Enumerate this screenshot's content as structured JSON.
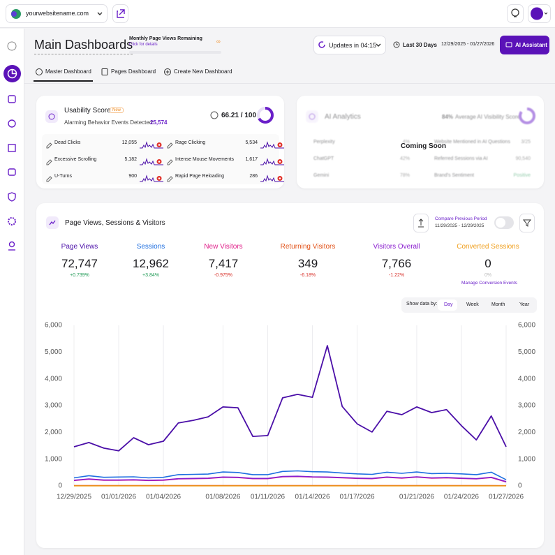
{
  "header": {
    "site": "yourwebsitename.com"
  },
  "page": {
    "title": "Main Dashboards",
    "quota_label": "Monthly Page Views Remaining",
    "quota_link": "Click for details",
    "quota_value": "∞",
    "updates": "Updates in 04:15",
    "range_label": "Last 30 Days",
    "range_dates": "12/29/2025 - 01/27/2026",
    "assistant": "AI Assistant"
  },
  "tabs": [
    "Master Dashboard",
    "Pages Dashboard",
    "Create New Dashboard"
  ],
  "usability": {
    "title": "Usability Score",
    "badge": "New",
    "alarm_label": "Alarming Behavior Events Detected:",
    "alarm_value": "25,574",
    "score": "66.21 / 100",
    "rows": [
      {
        "label": "Dead Clicks",
        "value": "12,055"
      },
      {
        "label": "Excessive Scrolling",
        "value": "5,182"
      },
      {
        "label": "U-Turns",
        "value": "900"
      },
      {
        "label": "Rage Clicking",
        "value": "5,534"
      },
      {
        "label": "Intense Mouse Movements",
        "value": "1,617"
      },
      {
        "label": "Rapid Page Reloading",
        "value": "286"
      }
    ]
  },
  "ai_analytics": {
    "title": "AI Analytics",
    "visibility_value": "84%",
    "visibility_label": "Average AI Visibility Score",
    "overlay": "Coming Soon",
    "rows": [
      {
        "label": "Perplexity",
        "value": "4%"
      },
      {
        "label": "ChatGPT",
        "value": "42%"
      },
      {
        "label": "Gemini",
        "value": "78%"
      },
      {
        "label": "Website Mentioned in AI Questions",
        "value": "3/25"
      },
      {
        "label": "Referred Sessions via AI",
        "value": "90,540"
      },
      {
        "label": "Brand's Sentiment",
        "value": "Positive"
      }
    ]
  },
  "traffic": {
    "title": "Page Views, Sessions & Visitors",
    "compare_label": "Compare Previous Period",
    "compare_dates": "11/29/2025 - 12/29/2025",
    "manage_link": "Manage Conversion Events",
    "show_by": "Show data by:",
    "periods": [
      "Day",
      "Week",
      "Month",
      "Year"
    ]
  },
  "chart_data": {
    "type": "line",
    "categories": [
      "12/29/2025",
      null,
      null,
      "01/01/2026",
      null,
      null,
      "01/04/2026",
      null,
      null,
      null,
      "01/08/2026",
      null,
      null,
      "01/11/2026",
      null,
      null,
      "01/14/2026",
      null,
      null,
      "01/17/2026",
      null,
      null,
      null,
      "01/21/2026",
      null,
      null,
      "01/24/2026",
      null,
      null,
      "01/27/2026"
    ],
    "ylim": [
      0,
      6000
    ],
    "yticks": [
      0,
      {
        "value": 1000,
        "label": "1,000"
      },
      {
        "value": 2000,
        "label": "2,000"
      },
      {
        "value": 3000,
        "label": "3,000"
      },
      {
        "value": 4000,
        "label": "4,000"
      },
      {
        "value": 5000,
        "label": "5,000"
      },
      {
        "value": 6000,
        "label": "6,000"
      }
    ],
    "y2lim": [
      0,
      6000
    ],
    "y2ticks": [
      0,
      {
        "value": 1000,
        "label": "1,000"
      },
      {
        "value": 2000,
        "label": "2,000"
      },
      {
        "value": 3000,
        "label": "3,000"
      },
      {
        "value": 4000,
        "label": "4,000"
      },
      {
        "value": 5000,
        "label": "5,000"
      },
      {
        "value": 6000,
        "label": "6,000"
      }
    ],
    "grid": true,
    "series": [
      {
        "name": "Page Views",
        "color": "#4b0fa8",
        "total": "72,747",
        "change": "+0.739%",
        "values": [
          1460,
          1620,
          1410,
          1310,
          1800,
          1540,
          1670,
          2350,
          2450,
          2580,
          2950,
          2920,
          1850,
          1880,
          3290,
          3420,
          3310,
          5240,
          2970,
          2320,
          2010,
          2790,
          2660,
          2950,
          2740,
          2850,
          2250,
          1720,
          2610,
          1460
        ]
      },
      {
        "name": "Sessions",
        "color": "#1f6fe0",
        "total": "12,962",
        "change": "+3.84%",
        "values": [
          300,
          380,
          320,
          330,
          340,
          300,
          320,
          420,
          430,
          440,
          520,
          500,
          420,
          420,
          540,
          560,
          530,
          520,
          480,
          450,
          430,
          510,
          470,
          520,
          460,
          470,
          450,
          420,
          510,
          230
        ]
      },
      {
        "name": "New Visitors",
        "color": "#e0218a",
        "total": "7,417",
        "change": "-0.975%",
        "values": [
          200,
          250,
          210,
          210,
          220,
          200,
          210,
          260,
          270,
          280,
          320,
          310,
          270,
          270,
          340,
          350,
          330,
          320,
          300,
          280,
          270,
          320,
          290,
          330,
          290,
          300,
          280,
          260,
          310,
          150
        ]
      },
      {
        "name": "Returning Visitors",
        "color": "#e2531a",
        "total": "349",
        "change": "-6.18%",
        "values": [
          10,
          12,
          11,
          10,
          12,
          11,
          11,
          13,
          12,
          13,
          14,
          13,
          12,
          11,
          14,
          13,
          13,
          12,
          12,
          11,
          11,
          12,
          12,
          12,
          11,
          12,
          11,
          11,
          12,
          8
        ]
      },
      {
        "name": "Visitors Overall",
        "color": "#8a1ecf",
        "total": "7,766",
        "change": "-1.22%",
        "values": [
          210,
          260,
          220,
          220,
          230,
          210,
          220,
          270,
          280,
          290,
          330,
          320,
          280,
          280,
          350,
          360,
          340,
          330,
          310,
          290,
          280,
          330,
          300,
          340,
          300,
          310,
          290,
          270,
          320,
          160
        ]
      },
      {
        "name": "Converted Sessions",
        "color": "#f0a020",
        "total": "0",
        "change": "0%",
        "values": [
          0,
          0,
          0,
          0,
          0,
          0,
          0,
          0,
          0,
          0,
          0,
          0,
          0,
          0,
          0,
          0,
          0,
          0,
          0,
          0,
          0,
          0,
          0,
          0,
          0,
          0,
          0,
          0,
          0,
          0
        ]
      }
    ]
  }
}
